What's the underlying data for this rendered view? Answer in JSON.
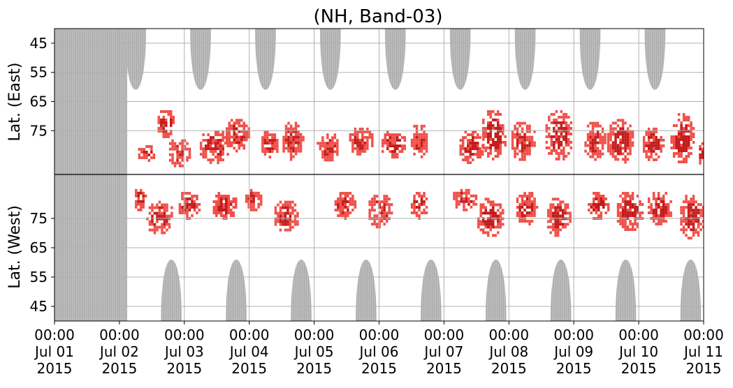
{
  "chart_data": {
    "type": "heatmap",
    "title": "(NH, Band-03)",
    "ylabels": {
      "upper": "Lat. (East)",
      "lower": "Lat. (West)"
    },
    "x_axis": {
      "start": "2015-07-01 00:00",
      "end": "2015-07-11 00:00",
      "ticks": [
        {
          "time": "00:00",
          "date": "Jul 01",
          "year": "2015"
        },
        {
          "time": "00:00",
          "date": "Jul 02",
          "year": "2015"
        },
        {
          "time": "00:00",
          "date": "Jul 03",
          "year": "2015"
        },
        {
          "time": "00:00",
          "date": "Jul 04",
          "year": "2015"
        },
        {
          "time": "00:00",
          "date": "Jul 05",
          "year": "2015"
        },
        {
          "time": "00:00",
          "date": "Jul 06",
          "year": "2015"
        },
        {
          "time": "00:00",
          "date": "Jul 07",
          "year": "2015"
        },
        {
          "time": "00:00",
          "date": "Jul 08",
          "year": "2015"
        },
        {
          "time": "00:00",
          "date": "Jul 09",
          "year": "2015"
        },
        {
          "time": "00:00",
          "date": "Jul 10",
          "year": "2015"
        },
        {
          "time": "00:00",
          "date": "Jul 11",
          "year": "2015"
        }
      ]
    },
    "y_axis": {
      "east_ticks": [
        "45",
        "55",
        "65",
        "75"
      ],
      "west_ticks": [
        "75",
        "65",
        "55",
        "45"
      ],
      "range_deg": [
        40,
        90
      ],
      "split": "North pole line between East and West hemispheres"
    },
    "grid": true,
    "colors": {
      "no_data_gray": "#bcbcbc",
      "activity_light": "#f0504a",
      "activity_dark": "#c41a1a",
      "grid": "#b0b0b0"
    },
    "no_data": {
      "full_coverage_days": [
        0.0,
        1.12
      ],
      "east_lobe_centers_day": [
        1.25,
        2.25,
        3.25,
        4.25,
        5.25,
        6.25,
        7.25,
        8.25,
        9.25
      ],
      "west_lobe_centers_day": [
        1.8,
        2.8,
        3.8,
        4.8,
        5.8,
        6.8,
        7.8,
        8.8,
        9.8
      ],
      "lobe_depth_deg": 20
    },
    "activity_blobs": [
      {
        "day": 1.4,
        "hemi": "east",
        "lat_center": 82,
        "lat_span": 6,
        "width_days": 0.3,
        "intensity": 0.4
      },
      {
        "day": 1.7,
        "hemi": "east",
        "lat_center": 72,
        "lat_span": 10,
        "width_days": 0.3,
        "intensity": 0.8
      },
      {
        "day": 1.9,
        "hemi": "east",
        "lat_center": 82,
        "lat_span": 10,
        "width_days": 0.35,
        "intensity": 0.5
      },
      {
        "day": 2.45,
        "hemi": "east",
        "lat_center": 80,
        "lat_span": 12,
        "width_days": 0.5,
        "intensity": 0.7
      },
      {
        "day": 2.8,
        "hemi": "east",
        "lat_center": 76,
        "lat_span": 12,
        "width_days": 0.4,
        "intensity": 0.5
      },
      {
        "day": 3.3,
        "hemi": "east",
        "lat_center": 79,
        "lat_span": 10,
        "width_days": 0.3,
        "intensity": 0.6
      },
      {
        "day": 3.65,
        "hemi": "east",
        "lat_center": 78,
        "lat_span": 14,
        "width_days": 0.35,
        "intensity": 0.5
      },
      {
        "day": 4.2,
        "hemi": "east",
        "lat_center": 80,
        "lat_span": 10,
        "width_days": 0.4,
        "intensity": 0.4
      },
      {
        "day": 4.7,
        "hemi": "east",
        "lat_center": 78,
        "lat_span": 10,
        "width_days": 0.4,
        "intensity": 0.6
      },
      {
        "day": 5.2,
        "hemi": "east",
        "lat_center": 79,
        "lat_span": 10,
        "width_days": 0.4,
        "intensity": 0.5
      },
      {
        "day": 5.6,
        "hemi": "east",
        "lat_center": 78,
        "lat_span": 12,
        "width_days": 0.3,
        "intensity": 0.4
      },
      {
        "day": 6.4,
        "hemi": "east",
        "lat_center": 80,
        "lat_span": 12,
        "width_days": 0.4,
        "intensity": 0.6
      },
      {
        "day": 6.75,
        "hemi": "east",
        "lat_center": 76,
        "lat_span": 18,
        "width_days": 0.4,
        "intensity": 0.9
      },
      {
        "day": 7.2,
        "hemi": "east",
        "lat_center": 78,
        "lat_span": 14,
        "width_days": 0.4,
        "intensity": 0.6
      },
      {
        "day": 7.75,
        "hemi": "east",
        "lat_center": 76,
        "lat_span": 18,
        "width_days": 0.45,
        "intensity": 0.8
      },
      {
        "day": 8.3,
        "hemi": "east",
        "lat_center": 78,
        "lat_span": 14,
        "width_days": 0.35,
        "intensity": 0.6
      },
      {
        "day": 8.7,
        "hemi": "east",
        "lat_center": 78,
        "lat_span": 16,
        "width_days": 0.45,
        "intensity": 0.9
      },
      {
        "day": 9.2,
        "hemi": "east",
        "lat_center": 79,
        "lat_span": 12,
        "width_days": 0.35,
        "intensity": 0.7
      },
      {
        "day": 9.65,
        "hemi": "east",
        "lat_center": 77,
        "lat_span": 18,
        "width_days": 0.4,
        "intensity": 0.9
      },
      {
        "day": 9.95,
        "hemi": "east",
        "lat_center": 82,
        "lat_span": 8,
        "width_days": 0.12,
        "intensity": 0.8
      },
      {
        "day": 1.3,
        "hemi": "west",
        "lat_center": 82,
        "lat_span": 8,
        "width_days": 0.2,
        "intensity": 0.4
      },
      {
        "day": 1.6,
        "hemi": "west",
        "lat_center": 76,
        "lat_span": 12,
        "width_days": 0.45,
        "intensity": 0.8
      },
      {
        "day": 2.05,
        "hemi": "west",
        "lat_center": 80,
        "lat_span": 10,
        "width_days": 0.35,
        "intensity": 0.5
      },
      {
        "day": 2.6,
        "hemi": "west",
        "lat_center": 80,
        "lat_span": 10,
        "width_days": 0.4,
        "intensity": 0.7
      },
      {
        "day": 3.05,
        "hemi": "west",
        "lat_center": 82,
        "lat_span": 8,
        "width_days": 0.3,
        "intensity": 0.4
      },
      {
        "day": 3.55,
        "hemi": "west",
        "lat_center": 76,
        "lat_span": 12,
        "width_days": 0.4,
        "intensity": 0.5
      },
      {
        "day": 4.45,
        "hemi": "west",
        "lat_center": 80,
        "lat_span": 10,
        "width_days": 0.35,
        "intensity": 0.4
      },
      {
        "day": 5.0,
        "hemi": "west",
        "lat_center": 78,
        "lat_span": 12,
        "width_days": 0.4,
        "intensity": 0.5
      },
      {
        "day": 5.6,
        "hemi": "west",
        "lat_center": 80,
        "lat_span": 10,
        "width_days": 0.3,
        "intensity": 0.4
      },
      {
        "day": 6.3,
        "hemi": "west",
        "lat_center": 82,
        "lat_span": 8,
        "width_days": 0.4,
        "intensity": 0.5
      },
      {
        "day": 6.7,
        "hemi": "west",
        "lat_center": 76,
        "lat_span": 14,
        "width_days": 0.45,
        "intensity": 0.8
      },
      {
        "day": 7.25,
        "hemi": "west",
        "lat_center": 79,
        "lat_span": 12,
        "width_days": 0.35,
        "intensity": 0.6
      },
      {
        "day": 7.75,
        "hemi": "west",
        "lat_center": 76,
        "lat_span": 14,
        "width_days": 0.4,
        "intensity": 0.7
      },
      {
        "day": 8.35,
        "hemi": "west",
        "lat_center": 80,
        "lat_span": 10,
        "width_days": 0.35,
        "intensity": 0.6
      },
      {
        "day": 8.85,
        "hemi": "west",
        "lat_center": 78,
        "lat_span": 14,
        "width_days": 0.45,
        "intensity": 0.8
      },
      {
        "day": 9.3,
        "hemi": "west",
        "lat_center": 79,
        "lat_span": 12,
        "width_days": 0.4,
        "intensity": 0.7
      },
      {
        "day": 9.8,
        "hemi": "west",
        "lat_center": 76,
        "lat_span": 16,
        "width_days": 0.4,
        "intensity": 0.9
      }
    ]
  }
}
